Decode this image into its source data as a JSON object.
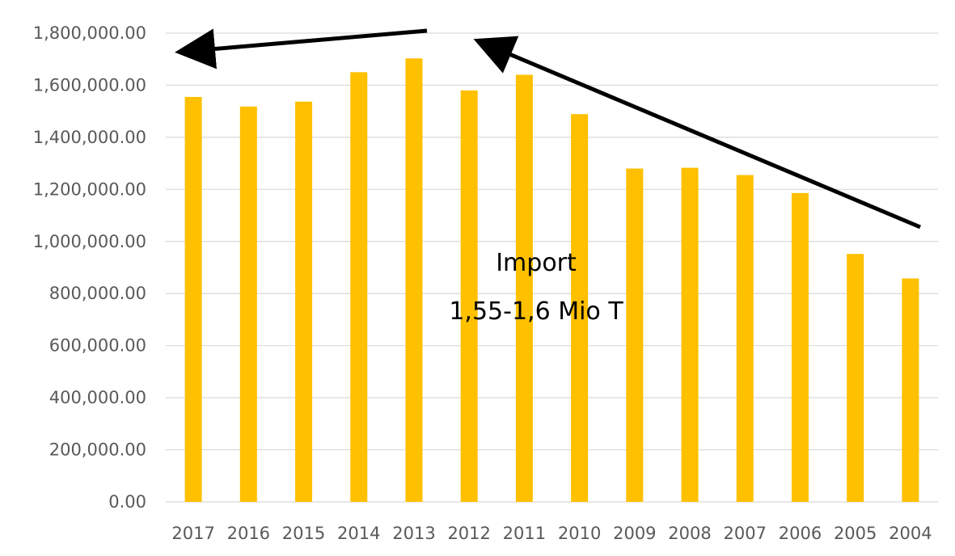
{
  "chart_data": {
    "type": "bar",
    "title": "",
    "xlabel": "",
    "ylabel": "",
    "categories": [
      "2017",
      "2016",
      "2015",
      "2014",
      "2013",
      "2012",
      "2011",
      "2010",
      "2009",
      "2008",
      "2007",
      "2006",
      "2005",
      "2004"
    ],
    "values": [
      1555000,
      1518000,
      1537000,
      1650000,
      1703000,
      1580000,
      1640000,
      1489000,
      1280000,
      1283000,
      1255000,
      1186000,
      952000,
      858000
    ],
    "ylim": [
      0,
      1800000
    ],
    "yticks": [
      0,
      200000,
      400000,
      600000,
      800000,
      1000000,
      1200000,
      1400000,
      1600000,
      1800000
    ],
    "ytick_labels": [
      "0.00",
      "200,000.00",
      "400,000.00",
      "600,000.00",
      "800,000.00",
      "1,000,000.00",
      "1,200,000.00",
      "1,400,000.00",
      "1,600,000.00",
      "1,800,000.00"
    ],
    "grid": true,
    "legend": "none",
    "bar_color": "#FFC000",
    "annotations": [
      {
        "text_line1": "Import",
        "text_line2": "1,55-1,6 Mio T"
      }
    ],
    "arrow_color": "#000000"
  }
}
